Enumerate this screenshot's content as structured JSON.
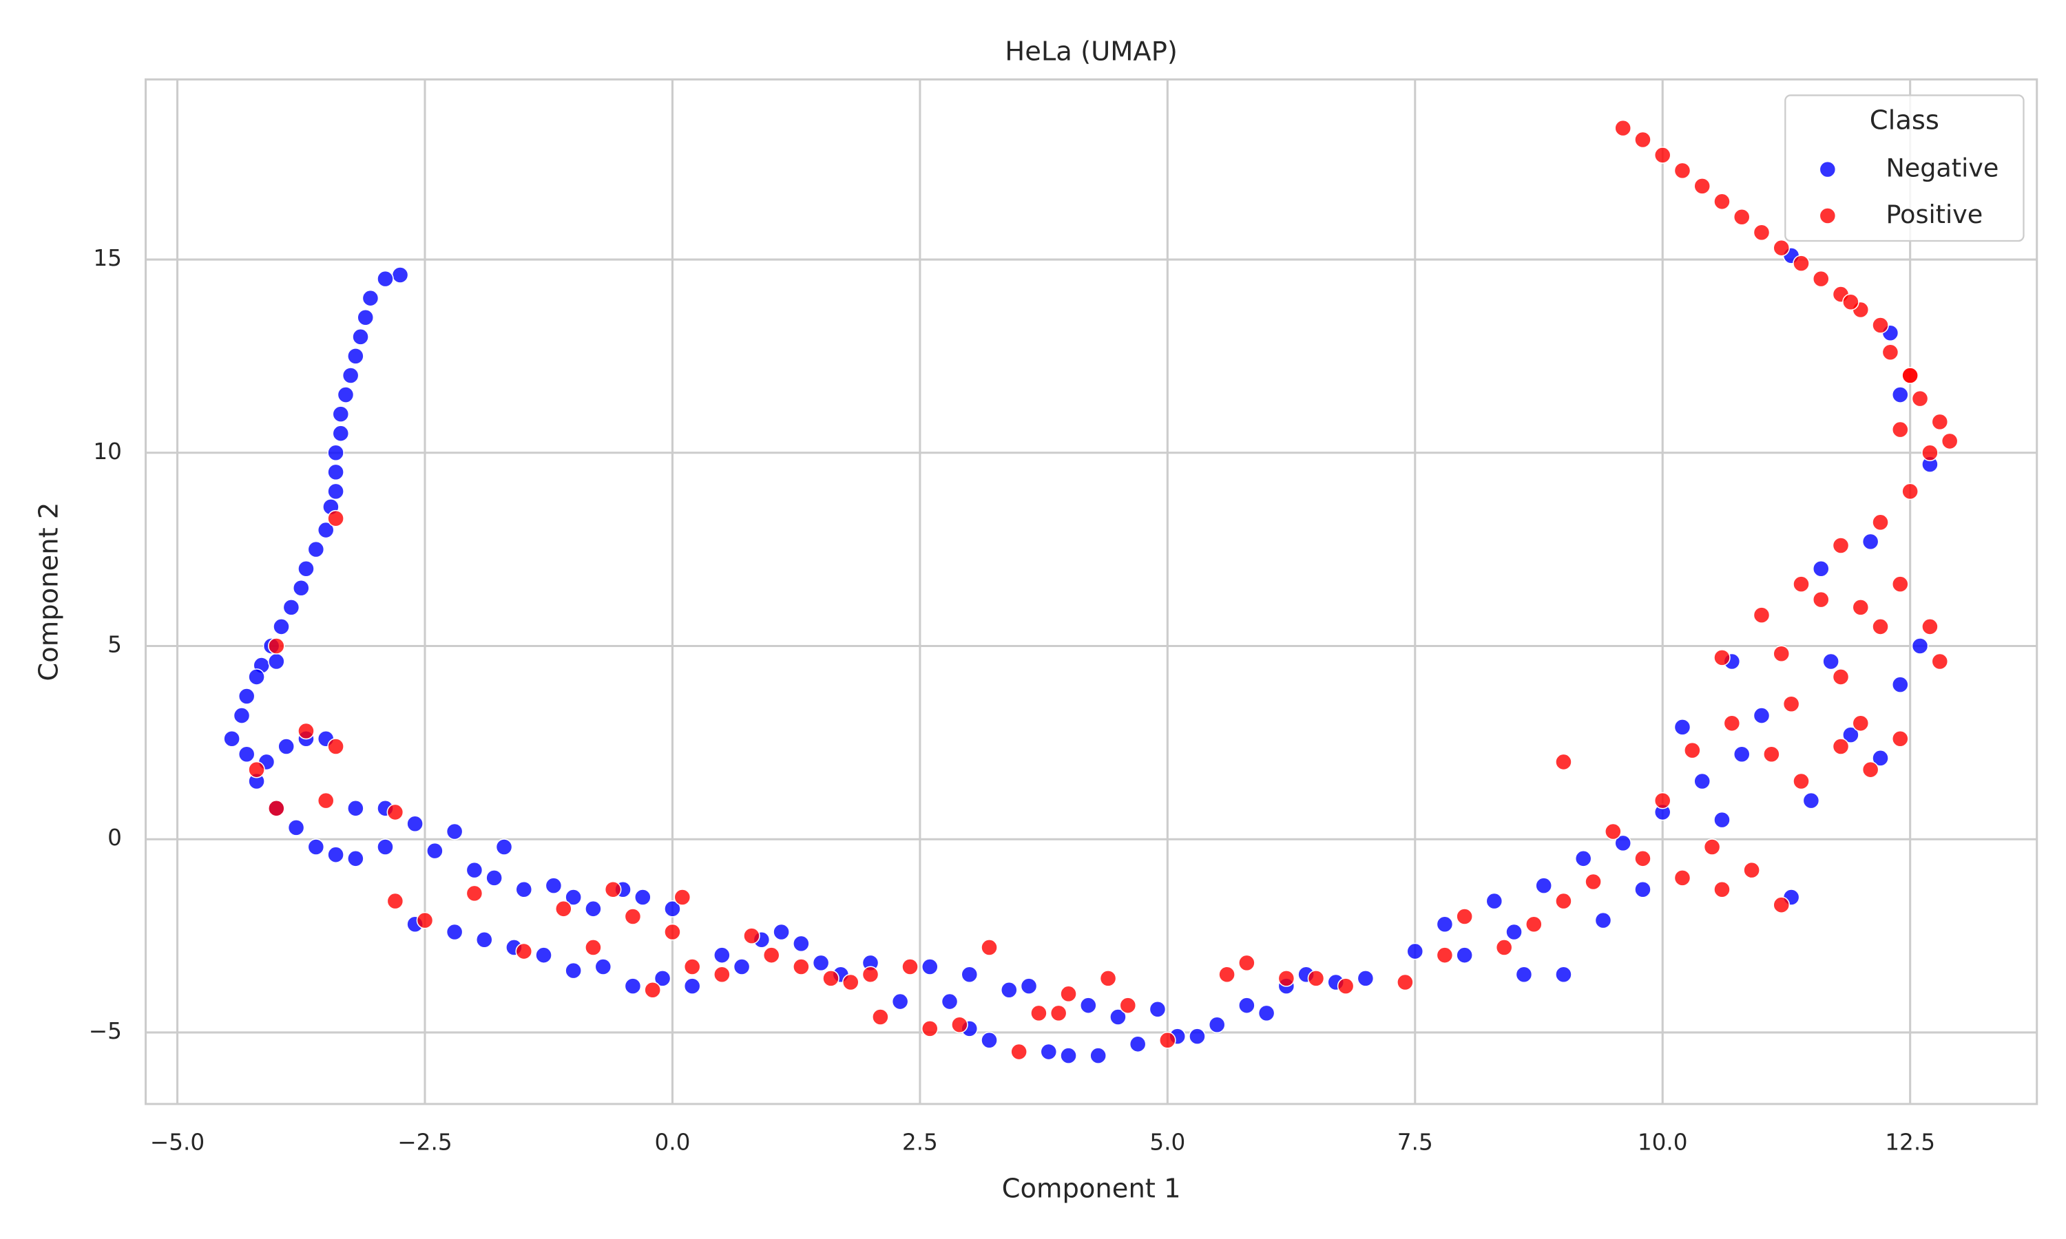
{
  "chart_data": {
    "type": "scatter",
    "title": "HeLa (UMAP)",
    "xlabel": "Component 1",
    "ylabel": "Component 2",
    "xlim": [
      -5.32,
      13.78
    ],
    "ylim": [
      -6.85,
      19.66
    ],
    "xticks": [
      {
        "value": -5,
        "label": "−5.0"
      },
      {
        "value": -2.5,
        "label": "−2.5"
      },
      {
        "value": 0,
        "label": "0.0"
      },
      2.5,
      {
        "value": 5,
        "label": "5.0"
      },
      7.5,
      {
        "value": 10,
        "label": "10.0"
      },
      12.5
    ],
    "yticks": [
      {
        "value": -5,
        "label": "−5"
      },
      0,
      5,
      10,
      15
    ],
    "grid": true,
    "legend": "upper right",
    "legend_title": "Class",
    "series": [
      {
        "name": "Negative",
        "color": "#0000ff",
        "x": [
          -2.75,
          -2.9,
          -3.05,
          -3.1,
          -3.15,
          -3.2,
          -3.25,
          -3.3,
          -3.35,
          -3.35,
          -3.4,
          -3.4,
          -3.4,
          -3.45,
          -3.5,
          -3.6,
          -3.7,
          -3.75,
          -3.85,
          -3.95,
          -4.05,
          -4.15,
          -4.2,
          -4.3,
          -4.35,
          -4.45,
          -4.3,
          -4.1,
          -3.9,
          -3.7,
          -4.2,
          -4.0,
          -3.8,
          -3.6,
          -3.4,
          -3.2,
          -3.2,
          -2.9,
          -2.6,
          -2.4,
          -2.2,
          -2.0,
          -1.8,
          -1.7,
          -1.5,
          -1.2,
          -1.0,
          -0.8,
          -0.5,
          -0.3,
          0.0,
          -2.6,
          -2.2,
          -1.9,
          -1.6,
          -1.3,
          -1.0,
          -0.7,
          -0.4,
          -0.1,
          0.2,
          0.5,
          0.7,
          0.9,
          1.1,
          1.3,
          1.5,
          1.7,
          2.0,
          2.3,
          2.6,
          2.8,
          3.0,
          3.2,
          3.0,
          3.4,
          3.6,
          3.8,
          4.0,
          4.2,
          4.3,
          4.5,
          4.7,
          4.9,
          5.1,
          5.3,
          5.5,
          5.8,
          6.0,
          6.2,
          6.4,
          6.7,
          7.0,
          7.5,
          7.8,
          8.0,
          8.3,
          8.5,
          8.8,
          9.0,
          9.2,
          9.4,
          9.6,
          9.8,
          10.0,
          10.2,
          10.4,
          10.6,
          10.8,
          11.0,
          11.3,
          11.5,
          11.7,
          11.9,
          12.2,
          12.4,
          12.6,
          12.1,
          11.6,
          12.4,
          12.3,
          11.3,
          12.7,
          10.7,
          8.6,
          -3.5,
          -4.0,
          -2.9
        ],
        "y": [
          14.6,
          14.5,
          14.0,
          13.5,
          13.0,
          12.5,
          12.0,
          11.5,
          11.0,
          10.5,
          10.0,
          9.5,
          9.0,
          8.6,
          8.0,
          7.5,
          7.0,
          6.5,
          6.0,
          5.5,
          5.0,
          4.5,
          4.2,
          3.7,
          3.2,
          2.6,
          2.2,
          2.0,
          2.4,
          2.6,
          1.5,
          0.8,
          0.3,
          -0.2,
          -0.4,
          -0.5,
          0.8,
          -0.2,
          0.4,
          -0.3,
          0.2,
          -0.8,
          -1.0,
          -0.2,
          -1.3,
          -1.2,
          -1.5,
          -1.8,
          -1.3,
          -1.5,
          -1.8,
          -2.2,
          -2.4,
          -2.6,
          -2.8,
          -3.0,
          -3.4,
          -3.3,
          -3.8,
          -3.6,
          -3.8,
          -3.0,
          -3.3,
          -2.6,
          -2.4,
          -2.7,
          -3.2,
          -3.5,
          -3.2,
          -4.2,
          -3.3,
          -4.2,
          -3.5,
          -5.2,
          -4.9,
          -3.9,
          -3.8,
          -5.5,
          -5.6,
          -4.3,
          -5.6,
          -4.6,
          -5.3,
          -4.4,
          -5.1,
          -5.1,
          -4.8,
          -4.3,
          -4.5,
          -3.8,
          -3.5,
          -3.7,
          -3.6,
          -2.9,
          -2.2,
          -3.0,
          -1.6,
          -2.4,
          -1.2,
          -3.5,
          -0.5,
          -2.1,
          -0.1,
          -1.3,
          0.7,
          2.9,
          1.5,
          0.5,
          2.2,
          3.2,
          -1.5,
          1.0,
          4.6,
          2.7,
          2.1,
          4.0,
          5.0,
          7.7,
          7.0,
          11.5,
          13.1,
          15.1,
          9.7,
          4.6,
          -3.5,
          2.6,
          4.6,
          0.8
        ]
      },
      {
        "name": "Positive",
        "color": "#ff0000",
        "x": [
          9.6,
          9.8,
          10.0,
          10.2,
          10.4,
          10.6,
          10.8,
          11.0,
          11.2,
          11.4,
          11.6,
          11.8,
          12.0,
          12.2,
          12.3,
          12.5,
          12.6,
          12.8,
          12.9,
          12.4,
          12.7,
          12.5,
          12.2,
          11.8,
          11.4,
          12.0,
          12.4,
          12.7,
          12.8,
          11.6,
          11.0,
          11.2,
          10.6,
          11.8,
          12.2,
          10.7,
          11.1,
          11.4,
          11.8,
          12.1,
          12.4,
          10.3,
          10.0,
          10.5,
          10.9,
          11.2,
          10.6,
          10.2,
          9.8,
          9.5,
          9.3,
          9.0,
          8.7,
          8.4,
          8.0,
          7.8,
          7.4,
          6.8,
          6.2,
          5.8,
          5.6,
          5.0,
          4.6,
          4.4,
          4.0,
          3.7,
          3.5,
          3.2,
          2.9,
          2.6,
          2.4,
          2.0,
          1.8,
          1.6,
          1.3,
          1.0,
          0.8,
          0.5,
          0.2,
          0.0,
          -0.2,
          -0.4,
          -0.6,
          -0.8,
          -1.1,
          -1.5,
          -2.0,
          -2.5,
          -2.8,
          -2.8,
          -3.5,
          -3.7,
          -3.4,
          -4.0,
          -4.2,
          -3.4,
          -4.0,
          0.1,
          3.9,
          2.1,
          6.5,
          9.0,
          11.9,
          12.5,
          12.0,
          11.3
        ],
        "y": [
          18.4,
          18.1,
          17.7,
          17.3,
          16.9,
          16.5,
          16.1,
          15.7,
          15.3,
          14.9,
          14.5,
          14.1,
          13.7,
          13.3,
          12.6,
          12.0,
          11.4,
          10.8,
          10.3,
          10.6,
          10.0,
          9.0,
          8.2,
          7.6,
          6.6,
          6.0,
          6.6,
          5.5,
          4.6,
          6.2,
          5.8,
          4.8,
          4.7,
          4.2,
          5.5,
          3.0,
          2.2,
          1.5,
          2.4,
          1.8,
          2.6,
          2.3,
          1.0,
          -0.2,
          -0.8,
          -1.7,
          -1.3,
          -1.0,
          -0.5,
          0.2,
          -1.1,
          -1.6,
          -2.2,
          -2.8,
          -2.0,
          -3.0,
          -3.7,
          -3.8,
          -3.6,
          -3.2,
          -3.5,
          -5.2,
          -4.3,
          -3.6,
          -4.0,
          -4.5,
          -5.5,
          -2.8,
          -4.8,
          -4.9,
          -3.3,
          -3.5,
          -3.7,
          -3.6,
          -3.3,
          -3.0,
          -2.5,
          -3.5,
          -3.3,
          -2.4,
          -3.9,
          -2.0,
          -1.3,
          -2.8,
          -1.8,
          -2.9,
          -1.4,
          -2.1,
          -1.6,
          0.7,
          1.0,
          2.8,
          2.4,
          0.8,
          1.8,
          8.3,
          5.0,
          -1.5,
          -4.5,
          -4.6,
          -3.6,
          2.0,
          13.9,
          12.0,
          3.0,
          3.5
        ]
      }
    ]
  }
}
